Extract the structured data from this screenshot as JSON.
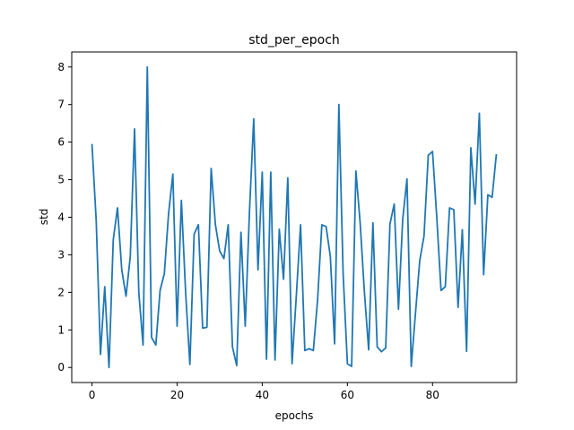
{
  "chart_data": {
    "type": "line",
    "title": "std_per_epoch",
    "xlabel": "epochs",
    "ylabel": "std",
    "xlim": [
      -4.75,
      99.75
    ],
    "ylim": [
      -0.4,
      8.4
    ],
    "xticks": [
      0,
      20,
      40,
      60,
      80
    ],
    "yticks": [
      0,
      1,
      2,
      3,
      4,
      5,
      6,
      7,
      8
    ],
    "grid": false,
    "line_color": "#1f77b4",
    "series": [
      {
        "x": [
          0,
          1,
          2,
          3,
          4,
          5,
          6,
          7,
          8,
          9,
          10,
          11,
          12,
          13,
          14,
          15,
          16,
          17,
          18,
          19,
          20,
          21,
          22,
          23,
          24,
          25,
          26,
          27,
          28,
          29,
          30,
          31,
          32,
          33,
          34,
          35,
          36,
          37,
          38,
          39,
          40,
          41,
          42,
          43,
          44,
          45,
          46,
          47,
          48,
          49,
          50,
          51,
          52,
          53,
          54,
          55,
          56,
          57,
          58,
          59,
          60,
          61,
          62,
          63,
          64,
          65,
          66,
          67,
          68,
          69,
          70,
          71,
          72,
          73,
          74,
          75,
          76,
          77,
          78,
          79,
          80,
          81,
          82,
          83,
          84,
          85,
          86,
          87,
          88,
          89,
          90,
          91,
          92,
          93,
          94,
          95
        ],
        "values": [
          5.95,
          3.9,
          0.35,
          2.15,
          0.0,
          3.4,
          4.25,
          2.6,
          1.9,
          2.95,
          6.35,
          2.0,
          0.6,
          8.0,
          0.8,
          0.6,
          2.05,
          2.5,
          4.1,
          5.15,
          1.1,
          4.45,
          2.0,
          0.08,
          3.55,
          3.8,
          1.05,
          1.07,
          5.3,
          3.8,
          3.1,
          2.9,
          3.8,
          0.55,
          0.05,
          3.6,
          1.1,
          4.15,
          6.62,
          2.6,
          5.2,
          0.22,
          5.2,
          0.2,
          3.68,
          2.35,
          5.05,
          0.1,
          1.9,
          3.8,
          0.45,
          0.5,
          0.45,
          1.8,
          3.8,
          3.75,
          2.95,
          0.63,
          7.0,
          2.5,
          0.1,
          0.03,
          5.23,
          3.85,
          2.0,
          0.47,
          3.85,
          0.55,
          0.42,
          0.52,
          3.82,
          4.35,
          1.55,
          3.95,
          5.02,
          0.03,
          1.45,
          2.85,
          3.5,
          5.65,
          5.75,
          4.0,
          2.05,
          2.15,
          4.25,
          4.2,
          1.6,
          3.67,
          0.43,
          5.85,
          4.35,
          6.77,
          2.47,
          4.6,
          4.53,
          5.68
        ]
      }
    ]
  }
}
